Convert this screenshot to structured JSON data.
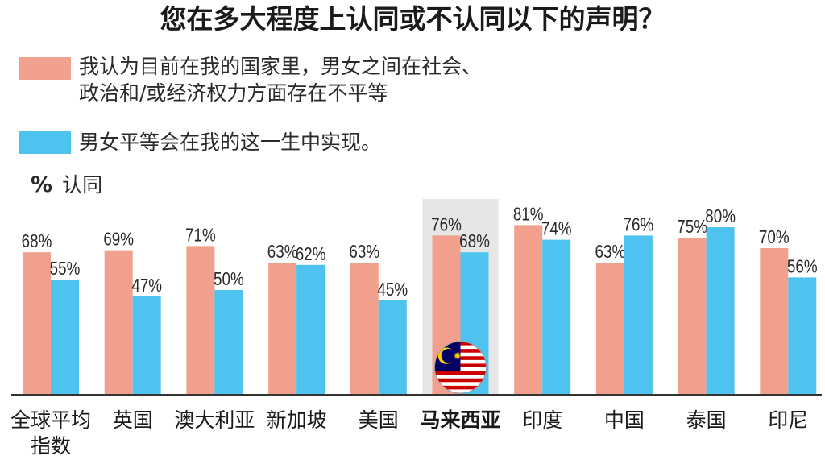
{
  "title": "您在多大程度上认同或不认同以下的声明？",
  "legend": [
    {
      "text_line1": "我认为目前在我的国家里，男女之间在社会、",
      "text_line2": "政治和/或经济权力方面存在不平等",
      "color": "#f0a08c"
    },
    {
      "text_line1": "男女平等会在我的这一生中实现。",
      "color": "#4fc3ef"
    }
  ],
  "unit_symbol": "%",
  "unit_label": "认同",
  "highlight_category": "马来西亚",
  "highlight_color": "#e6e6e6",
  "chart_data": {
    "type": "bar",
    "categories": [
      "全球平均指数",
      "英国",
      "澳大利亚",
      "新加坡",
      "美国",
      "马来西亚",
      "印度",
      "中国",
      "泰国",
      "印尼"
    ],
    "category_lines": [
      [
        "全球平均",
        "指数"
      ],
      [
        "英国"
      ],
      [
        "澳大利亚"
      ],
      [
        "新加坡"
      ],
      [
        "美国"
      ],
      [
        "马来西亚"
      ],
      [
        "印度"
      ],
      [
        "中国"
      ],
      [
        "泰国"
      ],
      [
        "印尼"
      ]
    ],
    "series": [
      {
        "values": [
          68,
          69,
          71,
          63,
          63,
          76,
          81,
          63,
          75,
          70
        ],
        "color": "#f0a08c"
      },
      {
        "values": [
          55,
          47,
          50,
          62,
          45,
          68,
          74,
          76,
          80,
          56
        ],
        "color": "#4fc3ef"
      }
    ],
    "value_suffix": "%",
    "ylim": [
      0,
      100
    ]
  }
}
